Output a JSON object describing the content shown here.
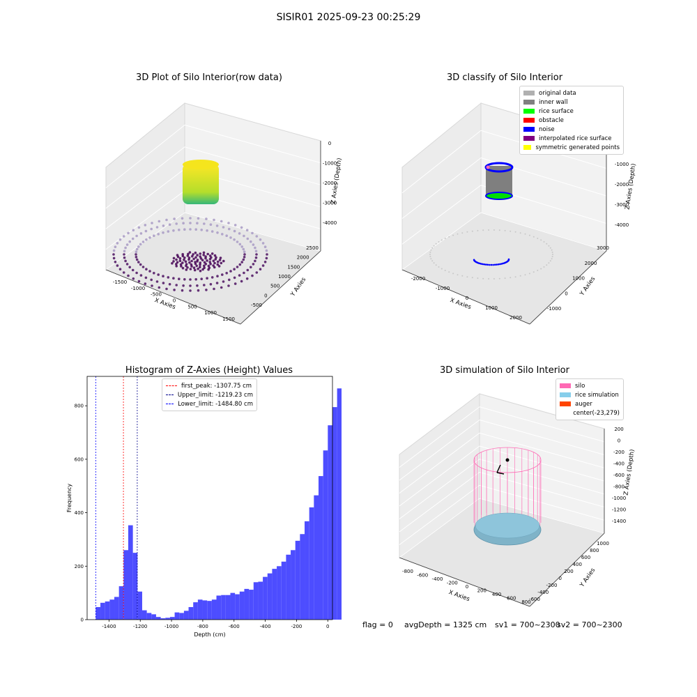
{
  "suptitle": "SISIR01 2025-09-23 00:25:29",
  "plot1": {
    "title": "3D Plot of Silo Interior(row data)",
    "xlabel": "X Axies",
    "ylabel": "Y Axies",
    "zlabel": "Z Axies (Depth)",
    "xticks": [
      "-1500",
      "-1000",
      "-500",
      "0",
      "500",
      "1000",
      "1500"
    ],
    "yticks": [
      "-500",
      "0",
      "500",
      "1000",
      "1500",
      "2000",
      "2500"
    ],
    "zticks": [
      "0",
      "-1000",
      "-2000",
      "-3000",
      "-4000"
    ]
  },
  "plot2": {
    "title": "3D classify of Silo Interior",
    "xlabel": "X Axies",
    "ylabel": "Y Axies",
    "zlabel": "Z Axies (Depth)",
    "xticks": [
      "-2000",
      "-1000",
      "0",
      "1000",
      "2000"
    ],
    "yticks": [
      "-1000",
      "0",
      "1000",
      "2000",
      "3000"
    ],
    "zticks": [
      "-1000",
      "-2000",
      "-3000",
      "-4000"
    ],
    "legend": [
      {
        "label": "original data",
        "color": "#b0b0b0"
      },
      {
        "label": "inner wall",
        "color": "#808080"
      },
      {
        "label": "rice surface",
        "color": "#00ff00"
      },
      {
        "label": "obstacle",
        "color": "#ff0000"
      },
      {
        "label": "noise",
        "color": "#0000ff"
      },
      {
        "label": "interpolated rice surface",
        "color": "#800080"
      },
      {
        "label": "symmetric generated points",
        "color": "#ffff00"
      }
    ]
  },
  "plot4": {
    "title": "3D simulation of Silo Interior",
    "xlabel": "X Axies",
    "ylabel": "Y Axies",
    "zlabel": "Z Axies (Depth)",
    "xticks": [
      "-800",
      "-600",
      "-400",
      "-200",
      "0",
      "200",
      "400",
      "600",
      "800"
    ],
    "yticks": [
      "-600",
      "-400",
      "-200",
      "0",
      "200",
      "400",
      "600",
      "800",
      "1000"
    ],
    "zticks": [
      "200",
      "0",
      "-200",
      "-400",
      "-600",
      "-800",
      "-1000",
      "-1200",
      "-1400"
    ],
    "legend": [
      {
        "label": "silo",
        "color": "#ff69b4"
      },
      {
        "label": "rice simulation",
        "color": "#87ceeb"
      },
      {
        "label": "auger",
        "color": "#ff4500"
      },
      {
        "label": "center(-23,279)",
        "color": ""
      }
    ]
  },
  "status": {
    "flag": "flag = 0",
    "avg": "avgDepth = 1325 cm",
    "sv1": "sv1 = 700~2300",
    "sv2": "sv2 = 700~2300"
  },
  "chart_data": [
    {
      "type": "histogram",
      "title": "Histogram of Z-Axies (Height) Values",
      "xlabel": "Depth (cm)",
      "ylabel": "Frequency",
      "xlim": [
        -1540,
        30
      ],
      "ylim": [
        0,
        910
      ],
      "xticks": [
        -1400,
        -1200,
        -1000,
        -800,
        -600,
        -400,
        -200,
        0
      ],
      "yticks": [
        0,
        200,
        400,
        600,
        800
      ],
      "bin_width": 29.7,
      "bin_start": -1484.8,
      "values": [
        47,
        63,
        68,
        75,
        85,
        125,
        260,
        353,
        250,
        105,
        35,
        25,
        20,
        10,
        5,
        7,
        10,
        27,
        25,
        33,
        47,
        65,
        75,
        72,
        70,
        75,
        90,
        92,
        92,
        100,
        95,
        105,
        115,
        112,
        140,
        142,
        160,
        173,
        190,
        200,
        217,
        243,
        260,
        295,
        320,
        368,
        420,
        465,
        537,
        633,
        727,
        795,
        865
      ],
      "lines": [
        {
          "label": "first_peak: -1307.75 cm",
          "x": -1307.75,
          "color": "#ff0000"
        },
        {
          "label": "Upper_limit: -1219.23 cm",
          "x": -1219.23,
          "color": "#00008b"
        },
        {
          "label": "Lower_limit: -1484.80 cm",
          "x": -1484.8,
          "color": "#0000ff"
        }
      ],
      "bar_color": "#4d4dff"
    }
  ]
}
